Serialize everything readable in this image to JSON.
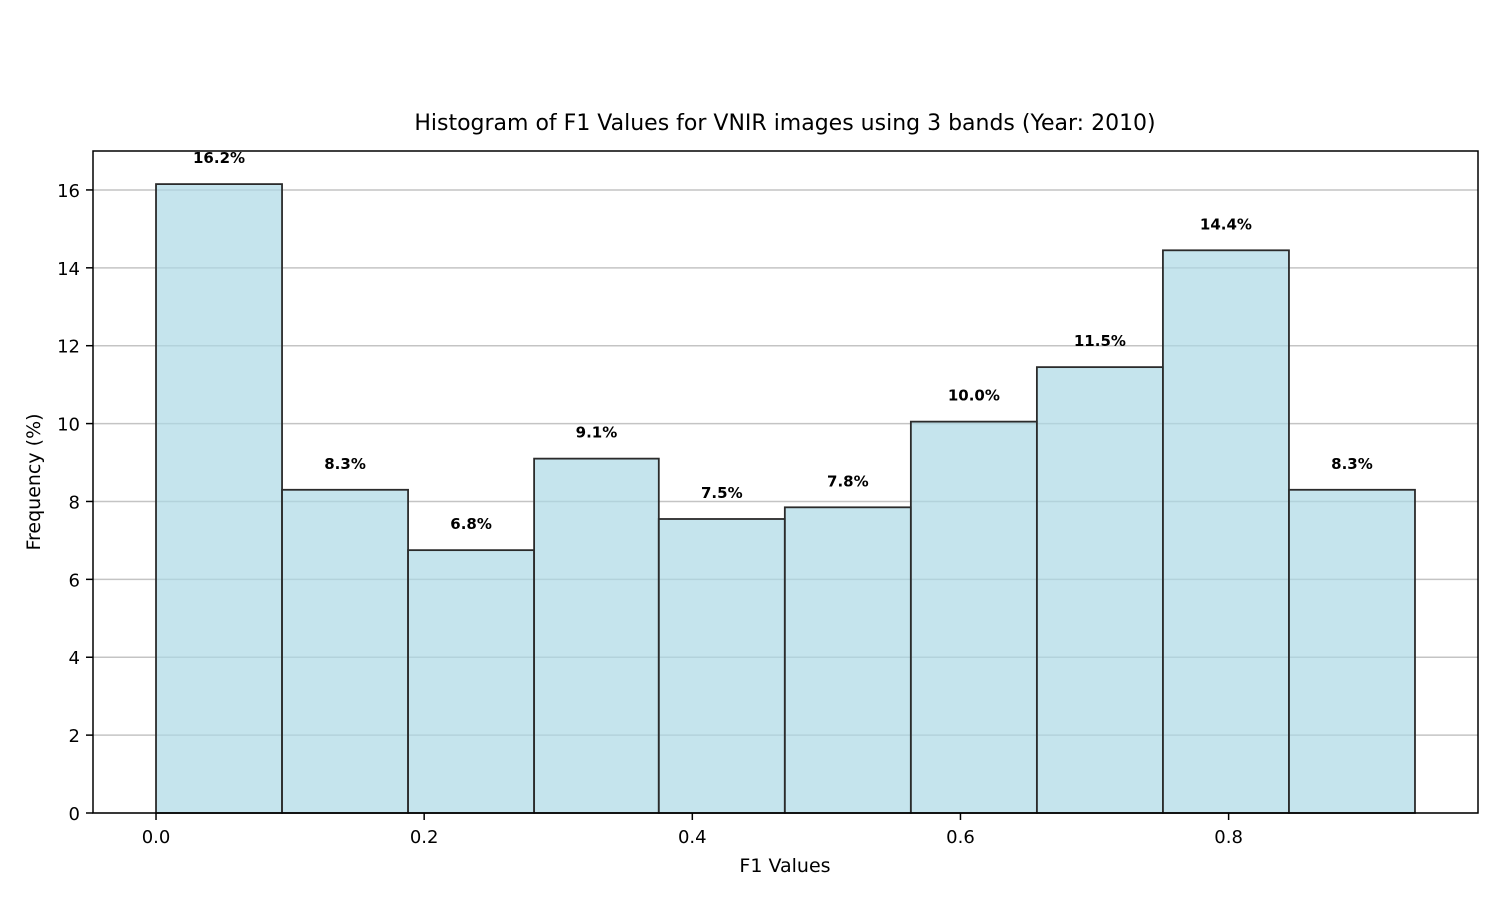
{
  "chart_data": {
    "type": "bar",
    "title": "Histogram of F1 Values for VNIR images using 3 bands (Year: 2010)",
    "xlabel": "F1 Values",
    "ylabel": "Frequency (%)",
    "bins": [
      {
        "start": 0.0,
        "end": 0.094,
        "value": 16.15,
        "label": "16.2%"
      },
      {
        "start": 0.094,
        "end": 0.188,
        "value": 8.3,
        "label": "8.3%"
      },
      {
        "start": 0.188,
        "end": 0.282,
        "value": 6.75,
        "label": "6.8%"
      },
      {
        "start": 0.282,
        "end": 0.375,
        "value": 9.1,
        "label": "9.1%"
      },
      {
        "start": 0.375,
        "end": 0.469,
        "value": 7.55,
        "label": "7.5%"
      },
      {
        "start": 0.469,
        "end": 0.563,
        "value": 7.85,
        "label": "7.8%"
      },
      {
        "start": 0.563,
        "end": 0.657,
        "value": 10.05,
        "label": "10.0%"
      },
      {
        "start": 0.657,
        "end": 0.751,
        "value": 11.45,
        "label": "11.5%"
      },
      {
        "start": 0.751,
        "end": 0.845,
        "value": 14.45,
        "label": "14.4%"
      },
      {
        "start": 0.845,
        "end": 0.939,
        "value": 8.3,
        "label": "8.3%"
      }
    ],
    "xlim": [
      -0.047,
      0.986
    ],
    "ylim": [
      0,
      17
    ],
    "xticks": [
      0.0,
      0.2,
      0.4,
      0.6,
      0.8
    ],
    "xtick_labels": [
      "0.0",
      "0.2",
      "0.4",
      "0.6",
      "0.8"
    ],
    "yticks": [
      0,
      2,
      4,
      6,
      8,
      10,
      12,
      14,
      16
    ],
    "ytick_labels": [
      "0",
      "2",
      "4",
      "6",
      "8",
      "10",
      "12",
      "14",
      "16"
    ],
    "grid": "horizontal",
    "bar_color": "#add8e6",
    "edge_color": "#2b2b2b"
  }
}
